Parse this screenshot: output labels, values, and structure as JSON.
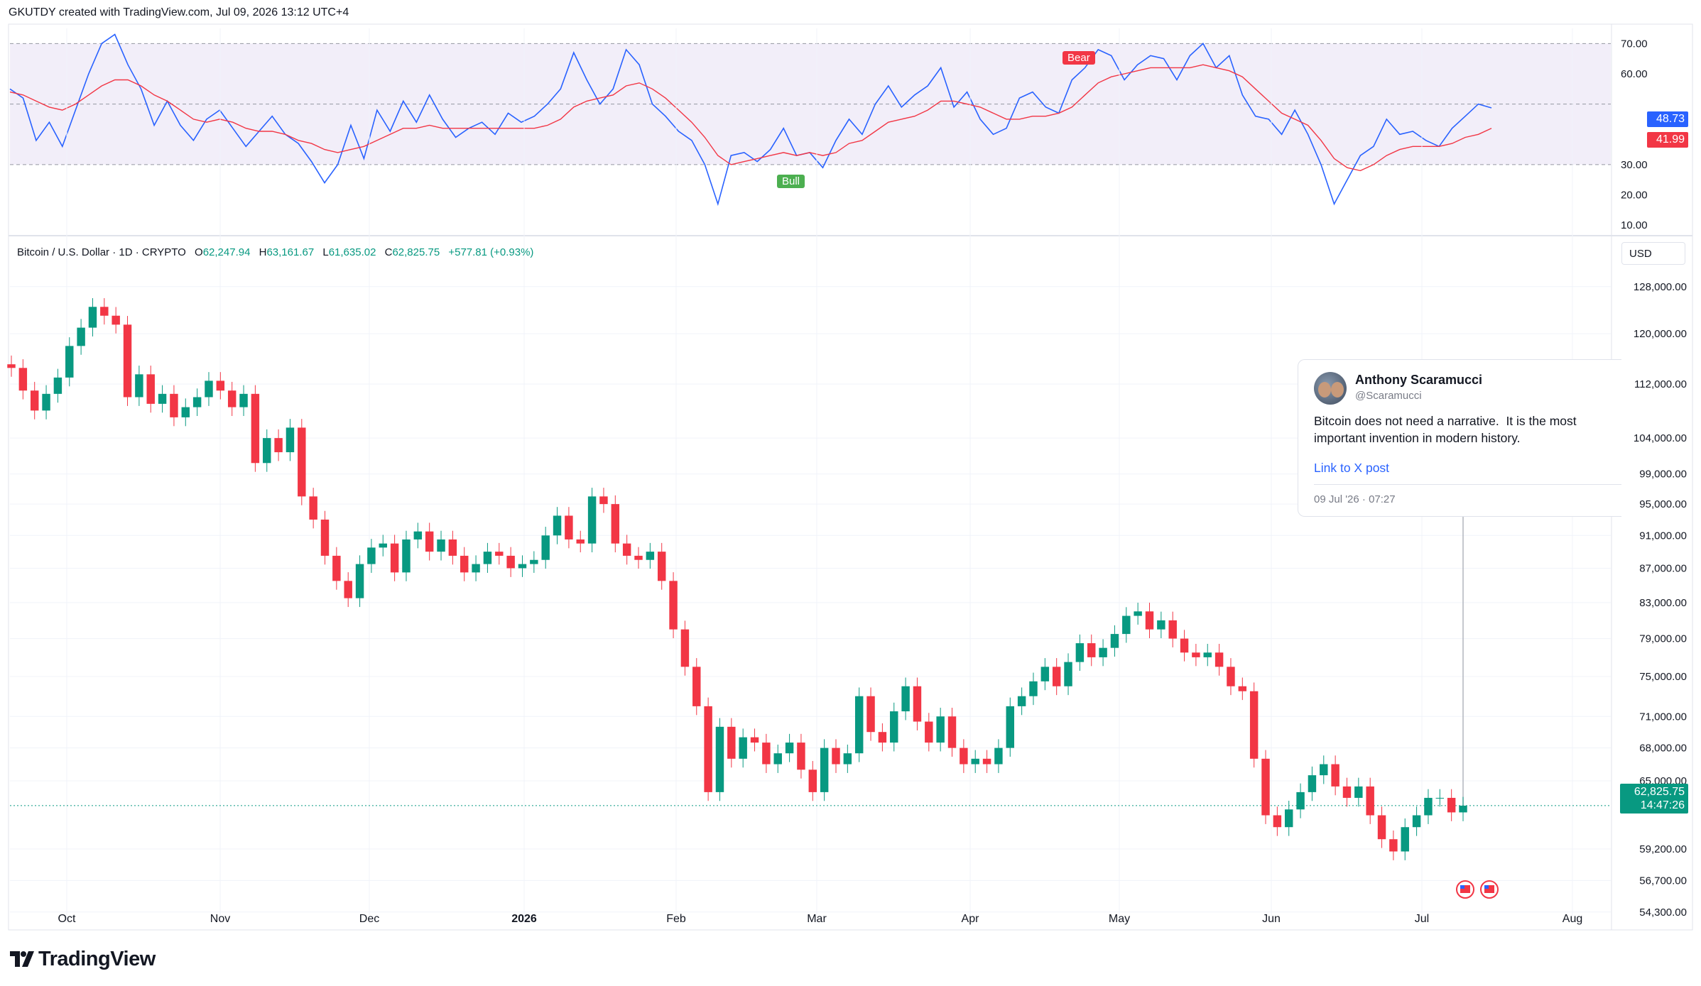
{
  "header": {
    "text": "GKUTDY created with TradingView.com, Jul 09, 2026 13:12 UTC+4"
  },
  "legend": {
    "symbol": "Bitcoin / U.S. Dollar · 1D · CRYPTO",
    "open_label": "O",
    "open": "62,247.94",
    "high_label": "H",
    "high": "63,161.67",
    "low_label": "L",
    "low": "61,635.02",
    "close_label": "C",
    "close": "62,825.75",
    "change": "+577.81 (+0.93%)"
  },
  "currency": "USD",
  "price_tag": {
    "price": "62,825.75",
    "countdown": "14:47:26",
    "color": "#089981"
  },
  "rsi": {
    "rsi_value": "48.73",
    "ma_value": "41.99",
    "rsi_color": "#2962ff",
    "ma_color": "#f23645",
    "bull_label": "Bull",
    "bear_label": "Bear",
    "bull_color": "#4caf50",
    "bear_color": "#f23645"
  },
  "tweet": {
    "name": "Anthony Scaramucci",
    "handle": "@Scaramucci",
    "body": "Bitcoin does not need a narrative.  It is the most important invention in modern history.",
    "link": "Link to X post",
    "time": "09 Jul '26 · 07:27"
  },
  "footer": {
    "brand": "TradingView"
  },
  "chart_data": [
    {
      "type": "line",
      "title": "RSI",
      "y_axis_ticks": [
        "70.00",
        "60.00",
        "30.00",
        "20.00",
        "10.00"
      ],
      "ylim": [
        10,
        75
      ],
      "band": [
        30,
        70
      ],
      "series": [
        {
          "values": [
            55,
            52,
            38,
            44,
            36,
            48,
            60,
            70,
            73,
            63,
            55,
            43,
            51,
            43,
            38,
            45,
            48,
            42,
            36,
            41,
            46,
            40,
            37,
            31,
            24,
            30,
            43,
            32,
            48,
            41,
            51,
            44,
            53,
            45,
            39,
            42,
            44,
            40,
            47,
            44,
            46,
            50,
            55,
            67,
            58,
            50,
            55,
            68,
            63,
            50,
            46,
            41,
            38,
            30,
            17,
            33,
            34,
            31,
            35,
            42,
            33,
            34,
            29,
            38,
            45,
            40,
            50,
            56,
            49,
            53,
            56,
            62,
            49,
            54,
            45,
            40,
            42,
            52,
            54,
            49,
            47,
            58,
            62,
            68,
            66,
            58,
            63,
            66,
            65,
            58,
            66,
            70,
            62,
            66,
            53,
            46,
            45,
            40,
            48,
            40,
            30,
            17,
            25,
            33,
            36,
            45,
            40,
            41,
            38,
            36,
            42,
            46,
            50,
            48.73
          ]
        },
        {
          "values": [
            54,
            53,
            51,
            49,
            48,
            50,
            53,
            56,
            58,
            58,
            56,
            53,
            51,
            48,
            45,
            44,
            45,
            44,
            42,
            41,
            41,
            40,
            38,
            37,
            35,
            34,
            35,
            36,
            38,
            40,
            42,
            42,
            43,
            42,
            42,
            42,
            42,
            42,
            42,
            42,
            42,
            43,
            45,
            49,
            51,
            52,
            53,
            56,
            57,
            55,
            52,
            48,
            44,
            39,
            33,
            30,
            31,
            32,
            33,
            34,
            33,
            34,
            33,
            34,
            37,
            38,
            41,
            44,
            45,
            46,
            48,
            51,
            51,
            50,
            49,
            47,
            45,
            45,
            46,
            46,
            47,
            49,
            53,
            57,
            59,
            60,
            61,
            62,
            62,
            62,
            62,
            63,
            62,
            61,
            59,
            55,
            51,
            47,
            45,
            43,
            38,
            32,
            29,
            28,
            30,
            33,
            35,
            36,
            36,
            36,
            37,
            39,
            40,
            41.99
          ]
        }
      ]
    },
    {
      "type": "candlestick",
      "title": "Bitcoin / U.S. Dollar · 1D · CRYPTO",
      "y_axis_ticks": [
        "128,000.00",
        "120,000.00",
        "112,000.00",
        "104,000.00",
        "99,000.00",
        "95,000.00",
        "91,000.00",
        "87,000.00",
        "83,000.00",
        "79,000.00",
        "75,000.00",
        "71,000.00",
        "68,000.00",
        "65,000.00",
        "59,200.00",
        "56,700.00",
        "54,300.00"
      ],
      "x_axis_ticks": [
        "Oct",
        "Nov",
        "Dec",
        "2026",
        "Feb",
        "Mar",
        "Apr",
        "May",
        "Jun",
        "Jul",
        "Aug"
      ],
      "ylim": [
        53500,
        131000
      ],
      "scale": "log",
      "close": [
        114500,
        111000,
        108000,
        110500,
        113000,
        118000,
        121000,
        124500,
        123000,
        121500,
        110000,
        113500,
        109000,
        110500,
        107000,
        108500,
        110000,
        112500,
        111000,
        108500,
        110500,
        100500,
        104000,
        102000,
        105500,
        96000,
        93000,
        88500,
        85500,
        83500,
        87500,
        89500,
        90000,
        86500,
        90500,
        91500,
        89000,
        90500,
        88500,
        86500,
        87500,
        89000,
        88500,
        87000,
        87500,
        88000,
        91000,
        93500,
        90500,
        90000,
        96000,
        95000,
        90000,
        88500,
        88000,
        89000,
        85500,
        80000,
        76000,
        72000,
        64000,
        70000,
        67000,
        69000,
        68500,
        66500,
        67500,
        68500,
        66000,
        64000,
        68000,
        66500,
        67500,
        73000,
        69500,
        68500,
        71500,
        74000,
        70500,
        68500,
        71000,
        68000,
        66500,
        67000,
        66500,
        68000,
        72000,
        73000,
        74500,
        76000,
        74000,
        76500,
        78500,
        77000,
        78000,
        79500,
        81500,
        82000,
        80000,
        81000,
        79000,
        77500,
        77000,
        77500,
        76000,
        74000,
        73500,
        67000,
        62000,
        61000,
        62500,
        64000,
        65500,
        66500,
        64500,
        63500,
        64500,
        62000,
        60000,
        59000,
        61000,
        62000,
        63500,
        63500,
        62247,
        62825.75
      ]
    }
  ]
}
